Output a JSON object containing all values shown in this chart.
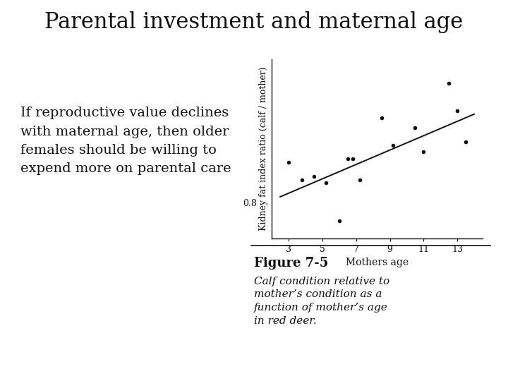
{
  "title": "Parental investment and maternal age",
  "body_text_lines": [
    "If reproductive value declines",
    "with maternal age, then older",
    "females should be willing to",
    "expend more on parental care"
  ],
  "xlabel": "Mothers age",
  "ylabel": "Kidney fat index ratio (calf / mother)",
  "xticks": [
    3,
    5,
    7,
    9,
    11,
    13
  ],
  "scatter_x": [
    3.0,
    3.8,
    4.5,
    5.2,
    6.0,
    6.5,
    6.8,
    7.2,
    8.5,
    9.2,
    10.5,
    11.0,
    12.5,
    13.0,
    13.5
  ],
  "scatter_y": [
    0.92,
    0.87,
    0.88,
    0.86,
    0.75,
    0.93,
    0.93,
    0.87,
    1.05,
    0.97,
    1.02,
    0.95,
    1.15,
    1.07,
    0.98
  ],
  "trend_x": [
    2.5,
    14.0
  ],
  "trend_y": [
    0.82,
    1.06
  ],
  "ylim": [
    0.7,
    1.22
  ],
  "xlim": [
    2.0,
    14.5
  ],
  "figure_label": "Figure 7-5",
  "caption_lines": [
    "Calf condition relative to",
    "mother’s condition as a",
    "function of mother’s age",
    "in red deer."
  ],
  "bg_color": "#ffffff",
  "scatter_color": "#111111",
  "line_color": "#111111",
  "text_color": "#111111",
  "title_fontsize": 22,
  "body_fontsize": 14,
  "axis_label_fontsize": 9,
  "tick_fontsize": 9,
  "figure_label_fontsize": 13,
  "caption_fontsize": 11
}
